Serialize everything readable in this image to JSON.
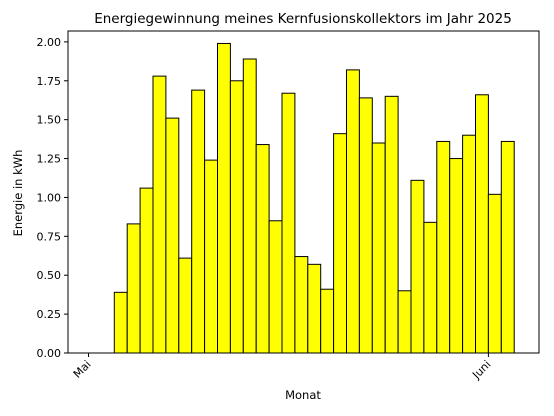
{
  "chart_data": {
    "type": "bar",
    "title": "Energiegewinnung meines Kernfusionskollektors im Jahr 2025",
    "xlabel": "Monat",
    "ylabel": "Energie in kWh",
    "x_tick_labels": [
      "Mai",
      "Juni"
    ],
    "y_ticks": [
      "0.00",
      "0.25",
      "0.50",
      "0.75",
      "1.00",
      "1.25",
      "1.50",
      "1.75",
      "2.00"
    ],
    "ylim": [
      0,
      2.07
    ],
    "grid": false,
    "bar_color": "#ffff00",
    "edge_color": "#000000",
    "categories": [
      "2025-05-01",
      "2025-05-02",
      "2025-05-03",
      "2025-05-04",
      "2025-05-05",
      "2025-05-06",
      "2025-05-07",
      "2025-05-08",
      "2025-05-09",
      "2025-05-10",
      "2025-05-11",
      "2025-05-12",
      "2025-05-13",
      "2025-05-14",
      "2025-05-15",
      "2025-05-16",
      "2025-05-17",
      "2025-05-18",
      "2025-05-19",
      "2025-05-20",
      "2025-05-21",
      "2025-05-22",
      "2025-05-23",
      "2025-05-24",
      "2025-05-25",
      "2025-05-26",
      "2025-05-27",
      "2025-05-28",
      "2025-05-29",
      "2025-05-30",
      "2025-05-31",
      "2025-06-01",
      "2025-06-02",
      "2025-06-03"
    ],
    "values": [
      0,
      0,
      0.39,
      0.83,
      1.06,
      1.78,
      1.51,
      0.61,
      1.69,
      1.24,
      1.99,
      1.75,
      1.89,
      1.34,
      0.85,
      1.67,
      0.62,
      0.57,
      0.41,
      1.41,
      1.82,
      1.64,
      1.35,
      1.65,
      0.4,
      1.11,
      0.84,
      1.36,
      1.25,
      1.4,
      1.66,
      1.02,
      1.36,
      0
    ]
  }
}
